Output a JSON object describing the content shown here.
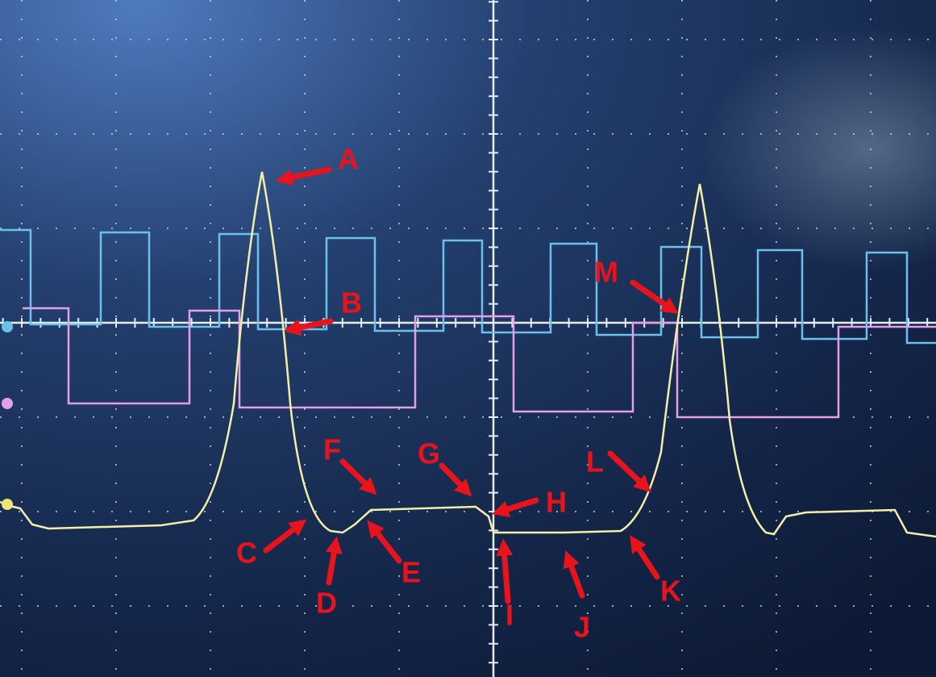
{
  "annotations": [
    "A",
    "B",
    "C",
    "D",
    "E",
    "F",
    "G",
    "H",
    "I",
    "J",
    "K",
    "L",
    "M"
  ]
}
